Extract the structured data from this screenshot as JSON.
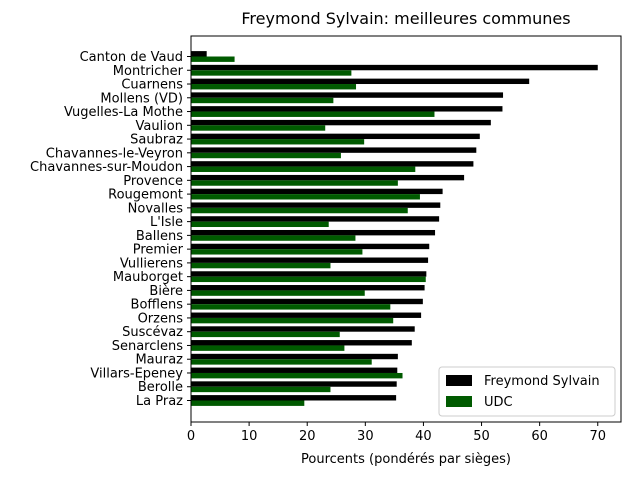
{
  "chart_data": {
    "type": "bar",
    "orientation": "horizontal",
    "title": "Freymond Sylvain: meilleures communes",
    "xlabel": "Pourcents (pondérés par sièges)",
    "ylabel": "",
    "xlim": [
      0,
      74
    ],
    "xticks": [
      0,
      10,
      20,
      30,
      40,
      50,
      60,
      70
    ],
    "grid": false,
    "legend_position": "lower-right",
    "categories": [
      "Canton de Vaud",
      "Montricher",
      "Cuarnens",
      "Mollens (VD)",
      "Vugelles-La Mothe",
      "Vaulion",
      "Saubraz",
      "Chavannes-le-Veyron",
      "Chavannes-sur-Moudon",
      "Provence",
      "Rougemont",
      "Novalles",
      "L'Isle",
      "Ballens",
      "Premier",
      "Vullierens",
      "Mauborget",
      "Bière",
      "Bofflens",
      "Orzens",
      "Suscévaz",
      "Senarclens",
      "Mauraz",
      "Villars-Epeney",
      "Berolle",
      "La Praz"
    ],
    "series": [
      {
        "name": "Freymond Sylvain",
        "color": "#000000",
        "values": [
          2.7,
          70.0,
          58.2,
          53.7,
          53.6,
          51.6,
          49.7,
          49.1,
          48.6,
          47.0,
          43.3,
          42.9,
          42.7,
          42.0,
          41.0,
          40.8,
          40.5,
          40.2,
          39.9,
          39.6,
          38.5,
          38.0,
          35.6,
          35.5,
          35.4,
          35.3
        ]
      },
      {
        "name": "UDC",
        "color": "#005a00",
        "values": [
          7.5,
          27.6,
          28.4,
          24.5,
          41.9,
          23.1,
          29.8,
          25.8,
          38.6,
          35.6,
          39.4,
          37.3,
          23.7,
          28.3,
          29.5,
          24.0,
          40.4,
          29.9,
          34.3,
          34.8,
          25.6,
          26.4,
          31.1,
          36.4,
          24.0,
          19.5
        ]
      }
    ]
  }
}
